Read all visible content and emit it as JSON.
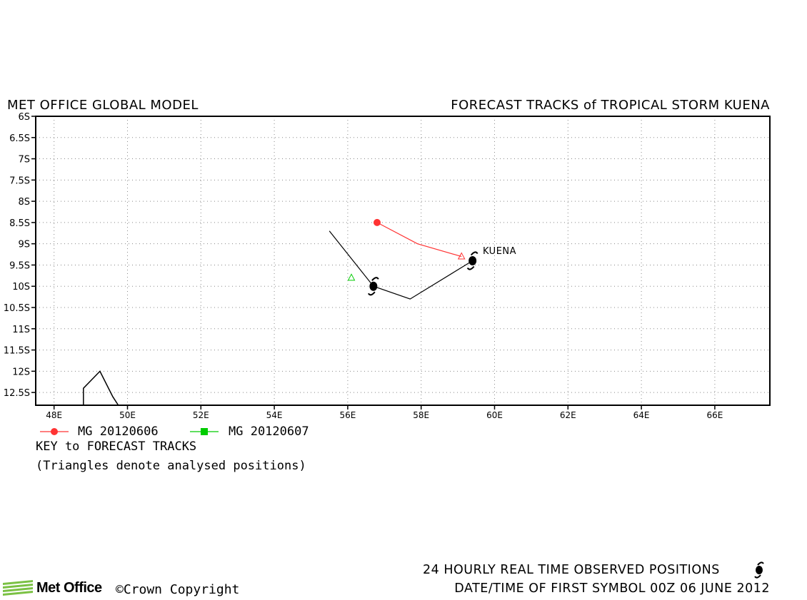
{
  "header": {
    "left_title": "MET OFFICE GLOBAL MODEL",
    "right_title": "FORECAST TRACKS of TROPICAL STORM KUENA"
  },
  "map": {
    "lon_range": [
      47.5,
      67.5
    ],
    "lat_range": [
      -12.8,
      -6.0
    ],
    "lon_ticks": [
      {
        "v": 48,
        "label": "48E"
      },
      {
        "v": 50,
        "label": "50E"
      },
      {
        "v": 52,
        "label": "52E"
      },
      {
        "v": 54,
        "label": "54E"
      },
      {
        "v": 56,
        "label": "56E"
      },
      {
        "v": 58,
        "label": "58E"
      },
      {
        "v": 60,
        "label": "60E"
      },
      {
        "v": 62,
        "label": "62E"
      },
      {
        "v": 64,
        "label": "64E"
      },
      {
        "v": 66,
        "label": "66E"
      }
    ],
    "lat_ticks": [
      {
        "v": -6,
        "label": "6S"
      },
      {
        "v": -6.5,
        "label": "6.5S"
      },
      {
        "v": -7,
        "label": "7S"
      },
      {
        "v": -7.5,
        "label": "7.5S"
      },
      {
        "v": -8,
        "label": "8S"
      },
      {
        "v": -8.5,
        "label": "8.5S"
      },
      {
        "v": -9,
        "label": "9S"
      },
      {
        "v": -9.5,
        "label": "9.5S"
      },
      {
        "v": -10,
        "label": "10S"
      },
      {
        "v": -10.5,
        "label": "10.5S"
      },
      {
        "v": -11,
        "label": "11S"
      },
      {
        "v": -11.5,
        "label": "11.5S"
      },
      {
        "v": -12,
        "label": "12S"
      },
      {
        "v": -12.5,
        "label": "12.5S"
      }
    ],
    "grid": "dotted",
    "coastline": [
      [
        48.8,
        -12.8
      ],
      [
        48.8,
        -12.4
      ],
      [
        49.25,
        -12.0
      ],
      [
        49.6,
        -12.6
      ],
      [
        49.75,
        -12.8
      ]
    ],
    "observed_track": {
      "name": "KUENA",
      "color": "#000000",
      "points": [
        [
          55.5,
          -8.7
        ],
        [
          56.7,
          -10.0
        ],
        [
          57.7,
          -10.3
        ],
        [
          59.4,
          -9.4
        ]
      ],
      "storm_symbols": [
        [
          56.7,
          -10.0
        ],
        [
          59.4,
          -9.4
        ]
      ]
    },
    "forecast_tracks": [
      {
        "label": "MG 20120606",
        "color": "#ff3333",
        "marker": "circle",
        "points": [
          [
            56.8,
            -8.5
          ],
          [
            57.9,
            -9.0
          ],
          [
            59.1,
            -9.3
          ]
        ],
        "analysed_positions": [
          [
            59.1,
            -9.3
          ]
        ]
      },
      {
        "label": "MG 20120607",
        "color": "#00cc00",
        "marker": "square",
        "points": [],
        "analysed_positions": [
          [
            56.1,
            -9.8
          ]
        ]
      }
    ]
  },
  "key": {
    "title": "KEY to FORECAST TRACKS",
    "note": "(Triangles denote analysed positions)"
  },
  "footer": {
    "logo_text": "Met Office",
    "copyright": "©Crown Copyright",
    "observed_note": "24 HOURLY REAL TIME OBSERVED POSITIONS",
    "datetime_note": "DATE/TIME OF FIRST SYMBOL 00Z 06 JUNE 2012"
  }
}
